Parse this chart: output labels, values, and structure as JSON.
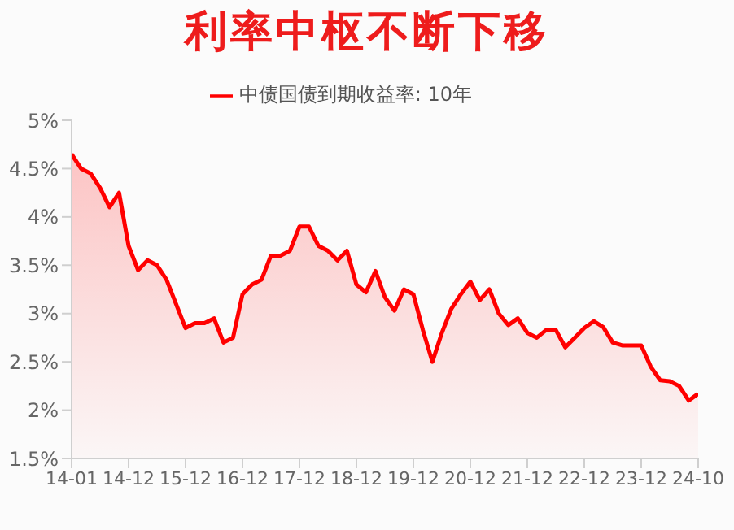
{
  "chart_data": {
    "type": "area",
    "title": "利率中枢不断下移",
    "categories": [
      "14-01",
      null,
      null,
      null,
      null,
      null,
      "14-12",
      null,
      null,
      null,
      null,
      null,
      "15-12",
      null,
      null,
      null,
      null,
      null,
      "16-12",
      null,
      null,
      null,
      null,
      null,
      "17-12",
      null,
      null,
      null,
      null,
      null,
      "18-12",
      null,
      null,
      null,
      null,
      null,
      "19-12",
      null,
      null,
      null,
      null,
      null,
      "20-12",
      null,
      null,
      null,
      null,
      null,
      "21-12",
      null,
      null,
      null,
      null,
      null,
      "22-12",
      null,
      null,
      null,
      null,
      null,
      "23-12",
      null,
      null,
      null,
      null,
      null,
      "24-10"
    ],
    "series": [
      {
        "name": "中债国债到期收益率: 10年",
        "color": "#ff0000",
        "values": [
          4.65,
          4.5,
          4.45,
          4.3,
          4.1,
          4.25,
          3.7,
          3.45,
          3.55,
          3.5,
          3.35,
          3.1,
          2.85,
          2.9,
          2.9,
          2.95,
          2.7,
          2.75,
          3.2,
          3.3,
          3.35,
          3.6,
          3.6,
          3.65,
          3.9,
          3.9,
          3.7,
          3.65,
          3.55,
          3.65,
          3.3,
          3.22,
          3.44,
          3.17,
          3.03,
          3.25,
          3.2,
          2.83,
          2.5,
          2.8,
          3.05,
          3.2,
          3.33,
          3.14,
          3.25,
          3.0,
          2.88,
          2.95,
          2.8,
          2.75,
          2.83,
          2.83,
          2.65,
          2.75,
          2.85,
          2.92,
          2.86,
          2.7,
          2.67,
          2.67,
          2.67,
          2.45,
          2.31,
          2.3,
          2.25,
          2.1,
          2.17
        ]
      }
    ],
    "ylim": [
      1.5,
      5
    ],
    "yticks": [
      {
        "value": 1.5,
        "label": "1.5%"
      },
      {
        "value": 2,
        "label": "2%"
      },
      {
        "value": 2.5,
        "label": "2.5%"
      },
      {
        "value": 3,
        "label": "3%"
      },
      {
        "value": 3.5,
        "label": "3.5%"
      },
      {
        "value": 4,
        "label": "4%"
      },
      {
        "value": 4.5,
        "label": "4.5%"
      },
      {
        "value": 5,
        "label": "5%"
      }
    ],
    "grid": false,
    "legend": "top"
  }
}
